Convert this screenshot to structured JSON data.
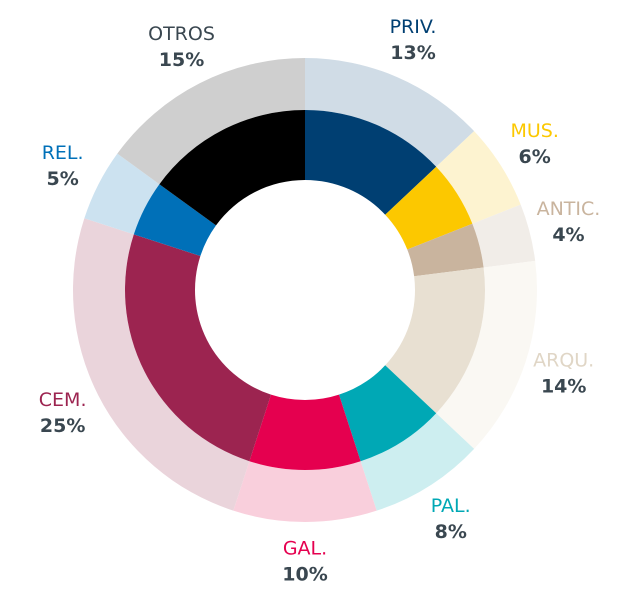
{
  "chart_data": {
    "type": "donut",
    "categories": [
      "PRIV.",
      "MUS.",
      "ANTIC.",
      "ARQU.",
      "PAL.",
      "GAL.",
      "CEM.",
      "REL.",
      "OTROS"
    ],
    "values": [
      13,
      6,
      4,
      14,
      8,
      10,
      25,
      5,
      15
    ],
    "value_labels": [
      "13%",
      "6%",
      "4%",
      "14%",
      "8%",
      "10%",
      "25%",
      "5%",
      "15%"
    ],
    "colors": [
      "#003f72",
      "#fcc800",
      "#c9b49e",
      "#e8e0d2",
      "#00a8b5",
      "#e5004f",
      "#9c2450",
      "#0070b8",
      "#000000"
    ],
    "outer_colors": [
      "#d0dce6",
      "#fdf3d0",
      "#f1ede8",
      "#faf8f3",
      "#cdeef0",
      "#f9cfdc",
      "#ead4db",
      "#cce2f0",
      "#cfcfcf"
    ],
    "label_colors": [
      "#003f72",
      "#fcc800",
      "#c9b49e",
      "#e0d6c6",
      "#00a8b5",
      "#e5004f",
      "#9c2450",
      "#0070b8",
      "#3a4750"
    ]
  }
}
